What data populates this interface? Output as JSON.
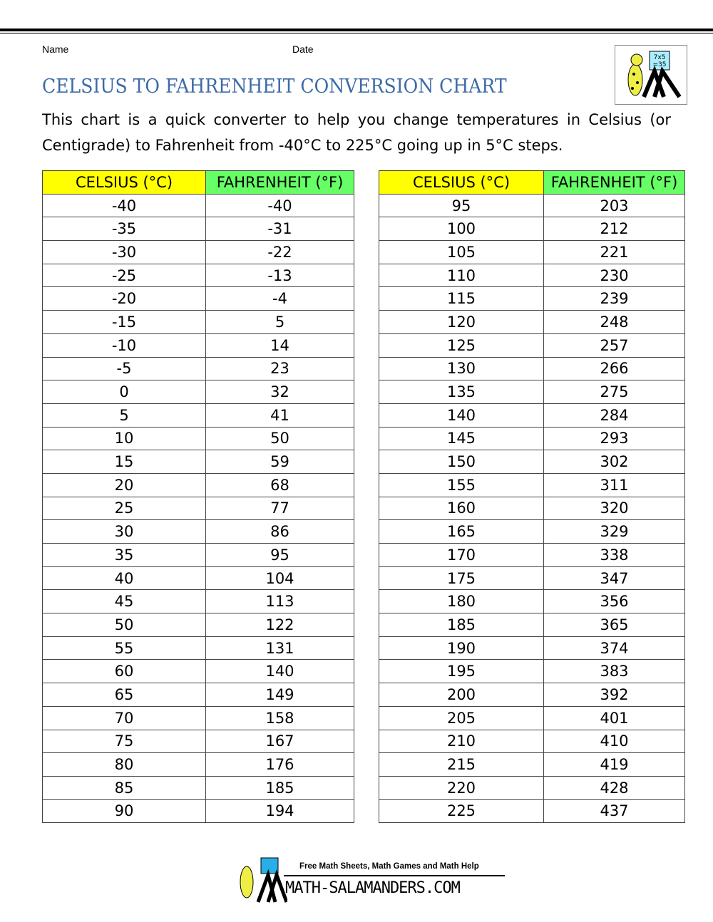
{
  "header": {
    "name_label": "Name",
    "date_label": "Date"
  },
  "title": "CELSIUS TO FAHRENHEIT CONVERSION CHART",
  "intro": "This chart is a quick converter to help you change temperatures in Celsius (or Centigrade) to Fahrenheit from -40°C to 225°C going up in 5°C steps.",
  "logo": {
    "board_text": "7x5 =35"
  },
  "table_headers": {
    "celsius": "CELSIUS (°C)",
    "fahrenheit": "FAHRENHEIT (°F)"
  },
  "colors": {
    "celsius_header": "#ffff00",
    "fahrenheit_header": "#66ff66",
    "title": "#3d6aa8"
  },
  "tables": [
    {
      "rows": [
        [
          "-40",
          "-40"
        ],
        [
          "-35",
          "-31"
        ],
        [
          "-30",
          "-22"
        ],
        [
          "-25",
          "-13"
        ],
        [
          "-20",
          "-4"
        ],
        [
          "-15",
          "5"
        ],
        [
          "-10",
          "14"
        ],
        [
          "-5",
          "23"
        ],
        [
          "0",
          "32"
        ],
        [
          "5",
          "41"
        ],
        [
          "10",
          "50"
        ],
        [
          "15",
          "59"
        ],
        [
          "20",
          "68"
        ],
        [
          "25",
          "77"
        ],
        [
          "30",
          "86"
        ],
        [
          "35",
          "95"
        ],
        [
          "40",
          "104"
        ],
        [
          "45",
          "113"
        ],
        [
          "50",
          "122"
        ],
        [
          "55",
          "131"
        ],
        [
          "60",
          "140"
        ],
        [
          "65",
          "149"
        ],
        [
          "70",
          "158"
        ],
        [
          "75",
          "167"
        ],
        [
          "80",
          "176"
        ],
        [
          "85",
          "185"
        ],
        [
          "90",
          "194"
        ]
      ]
    },
    {
      "rows": [
        [
          "95",
          "203"
        ],
        [
          "100",
          "212"
        ],
        [
          "105",
          "221"
        ],
        [
          "110",
          "230"
        ],
        [
          "115",
          "239"
        ],
        [
          "120",
          "248"
        ],
        [
          "125",
          "257"
        ],
        [
          "130",
          "266"
        ],
        [
          "135",
          "275"
        ],
        [
          "140",
          "284"
        ],
        [
          "145",
          "293"
        ],
        [
          "150",
          "302"
        ],
        [
          "155",
          "311"
        ],
        [
          "160",
          "320"
        ],
        [
          "165",
          "329"
        ],
        [
          "170",
          "338"
        ],
        [
          "175",
          "347"
        ],
        [
          "180",
          "356"
        ],
        [
          "185",
          "365"
        ],
        [
          "190",
          "374"
        ],
        [
          "195",
          "383"
        ],
        [
          "200",
          "392"
        ],
        [
          "205",
          "401"
        ],
        [
          "210",
          "410"
        ],
        [
          "215",
          "419"
        ],
        [
          "220",
          "428"
        ],
        [
          "225",
          "437"
        ]
      ]
    }
  ],
  "footer": {
    "tagline": "Free Math Sheets, Math Games and Math Help",
    "site": "MATH-SALAMANDERS.COM"
  }
}
